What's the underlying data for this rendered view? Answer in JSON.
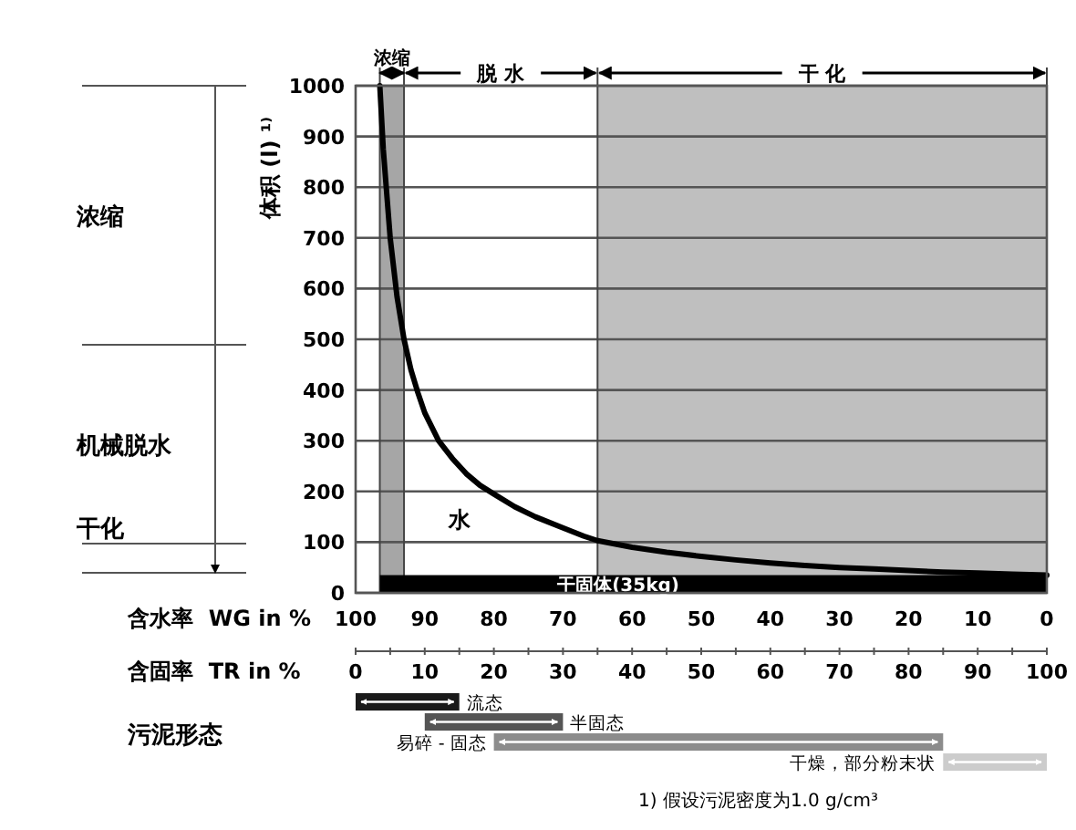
{
  "chart_data": [
    {
      "type": "line",
      "ylabel": "体积 (l) ¹⁾",
      "xlabel": "含水率  WG in %",
      "xlim": [
        100,
        0
      ],
      "xticks": [
        100,
        90,
        80,
        70,
        60,
        50,
        40,
        30,
        20,
        10,
        0
      ],
      "ylim": [
        0,
        1000
      ],
      "yticks": [
        0,
        100,
        200,
        300,
        400,
        500,
        600,
        700,
        800,
        900,
        1000
      ],
      "grid": "y",
      "series": [
        {
          "color": "#000000",
          "x": [
            96.5,
            96,
            95,
            94,
            93,
            92,
            91,
            90,
            88,
            86,
            84,
            82,
            80,
            77,
            74,
            70,
            67,
            65,
            60,
            55,
            50,
            45,
            40,
            35,
            30,
            25,
            20,
            15,
            10,
            5,
            0
          ],
          "values": [
            1000,
            875,
            700,
            583,
            500,
            440,
            395,
            355,
            300,
            265,
            235,
            212,
            195,
            170,
            150,
            128,
            112,
            103,
            90,
            80,
            72,
            65,
            59,
            54,
            50,
            47,
            44,
            41,
            39,
            37,
            35
          ]
        }
      ],
      "bands": [
        {
          "axis": "x",
          "from": 96.5,
          "to": 93,
          "label": "浓缩",
          "color": "#a6a6a6"
        },
        {
          "axis": "x",
          "from": 65,
          "to": 0,
          "label": "干 化",
          "color": "#bfbfbf"
        },
        {
          "axis": "y",
          "from": 0,
          "to": 35,
          "label": "干固体(35kg)",
          "color": "#000000"
        }
      ],
      "annotations": [
        "水",
        "脱 水",
        "浓缩",
        "机械脱水",
        "干化"
      ]
    },
    {
      "type": "bar",
      "orientation": "horizontal",
      "categories": [
        null,
        null,
        null,
        null
      ],
      "xlabel": "含固率  TR in %",
      "ylabel": "污泥形态",
      "xlim": [
        0,
        100
      ],
      "xticks": [
        0,
        10,
        20,
        30,
        40,
        50,
        60,
        70,
        80,
        90,
        100
      ],
      "annotations": [
        "流态",
        "半固态",
        "易碎 - 固态",
        "干燥，部分粉末状",
        "1) 假设污泥密度为1.0 g/cm³"
      ],
      "base": [
        0,
        10,
        20,
        85
      ],
      "values": [
        15,
        20,
        65,
        15
      ],
      "colors": [
        "#1a1a1a",
        "#555555",
        "#8c8c8c",
        "#cccccc"
      ]
    }
  ]
}
